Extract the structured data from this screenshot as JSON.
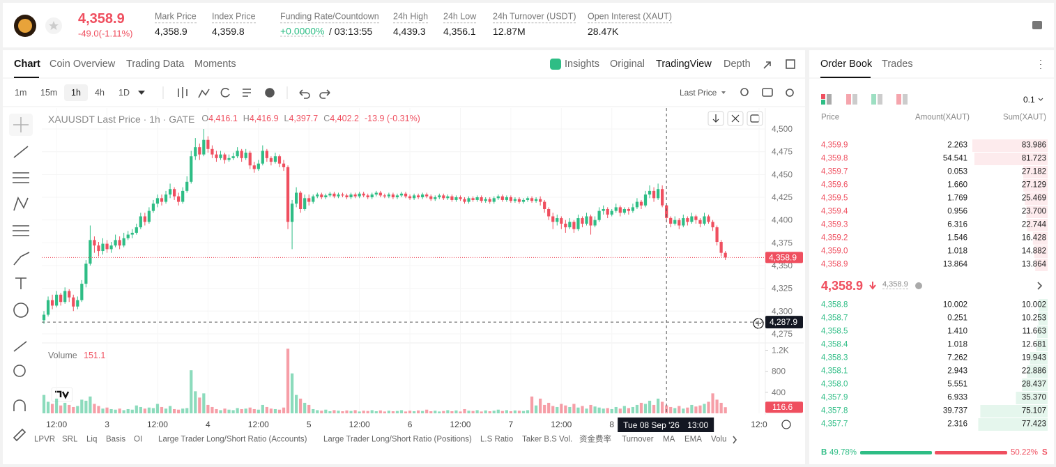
{
  "header": {
    "price": "4,358.9",
    "change": "-49.0(-1.11%)",
    "stats": [
      {
        "label": "Mark Price",
        "value": "4,358.9"
      },
      {
        "label": "Index Price",
        "value": "4,359.8"
      },
      {
        "label": "Funding Rate/Countdown",
        "value": "+0.0000%",
        "extra": "/ 03:13:55"
      },
      {
        "label": "24h High",
        "value": "4,439.3"
      },
      {
        "label": "24h Low",
        "value": "4,356.1"
      },
      {
        "label": "24h Turnover (USDT)",
        "value": "12.87M"
      },
      {
        "label": "Open Interest (XAUT)",
        "value": "28.47K"
      }
    ]
  },
  "tabs": {
    "left": [
      "Chart",
      "Coin Overview",
      "Trading Data",
      "Moments"
    ],
    "right": [
      "Insights",
      "Original",
      "TradingView",
      "Depth"
    ]
  },
  "intervals": [
    "1m",
    "15m",
    "1h",
    "4h",
    "1D"
  ],
  "price_type": "Last Price",
  "chart_data": {
    "type": "candlestick",
    "title": "XAUUSDT Last Price · 1h · GATE",
    "legend": [
      {
        "key": "O",
        "value": "4,416.1"
      },
      {
        "key": "H",
        "value": "4,416.9"
      },
      {
        "key": "L",
        "value": "4,397.7"
      },
      {
        "key": "C",
        "value": "4,402.2"
      }
    ],
    "legend_change": "-13.9 (-0.31%)",
    "up_color": "#2ebd85",
    "down_color": "#ef4f5f",
    "grid": true,
    "xlim": [
      -0.5,
      171.5
    ],
    "ylim": [
      4265,
      4523
    ],
    "yticks": [
      {
        "value": 4275,
        "label": "4,275"
      },
      {
        "value": 4300,
        "label": "4,300"
      },
      {
        "value": 4325,
        "label": "4,325"
      },
      {
        "value": 4350,
        "label": "4,350"
      },
      {
        "value": 4375,
        "label": "4,375"
      },
      {
        "value": 4400,
        "label": "4,400"
      },
      {
        "value": 4425,
        "label": "4,425"
      },
      {
        "value": 4450,
        "label": "4,450"
      },
      {
        "value": 4475,
        "label": "4,475"
      },
      {
        "value": 4500,
        "label": "4,500"
      }
    ],
    "xticks": [
      {
        "value": 3,
        "label": "12:00"
      },
      {
        "value": 15,
        "label": "3"
      },
      {
        "value": 27,
        "label": "12:00"
      },
      {
        "value": 39,
        "label": "4"
      },
      {
        "value": 51,
        "label": "12:00"
      },
      {
        "value": 63,
        "label": "5"
      },
      {
        "value": 75,
        "label": "12:00"
      },
      {
        "value": 87,
        "label": "6"
      },
      {
        "value": 99,
        "label": "12:00"
      },
      {
        "value": 111,
        "label": "7"
      },
      {
        "value": 123,
        "label": "12:00"
      },
      {
        "value": 135,
        "label": "8"
      },
      {
        "value": 170,
        "label": "12:0"
      }
    ],
    "last_price": {
      "value": 4358.9,
      "label": "4,358.9"
    },
    "crosshair_price": {
      "value": 4287.9,
      "label": "4,287.9"
    },
    "crosshair_time": {
      "date": "Tue 08 Sep '26",
      "time": "13:00"
    },
    "candles": [
      [
        4290,
        4300,
        4286,
        4296
      ],
      [
        4296,
        4316,
        4294,
        4312
      ],
      [
        4312,
        4318,
        4302,
        4306
      ],
      [
        4306,
        4322,
        4304,
        4318
      ],
      [
        4318,
        4320,
        4306,
        4310
      ],
      [
        4310,
        4326,
        4308,
        4322
      ],
      [
        4322,
        4324,
        4310,
        4315
      ],
      [
        4315,
        4318,
        4300,
        4305
      ],
      [
        4305,
        4316,
        4302,
        4312
      ],
      [
        4312,
        4334,
        4310,
        4330
      ],
      [
        4330,
        4356,
        4326,
        4352
      ],
      [
        4352,
        4394,
        4350,
        4378
      ],
      [
        4378,
        4382,
        4364,
        4372
      ],
      [
        4372,
        4376,
        4360,
        4366
      ],
      [
        4366,
        4380,
        4362,
        4374
      ],
      [
        4374,
        4378,
        4364,
        4368
      ],
      [
        4368,
        4376,
        4364,
        4372
      ],
      [
        4372,
        4384,
        4370,
        4378
      ],
      [
        4378,
        4382,
        4368,
        4372
      ],
      [
        4372,
        4386,
        4370,
        4380
      ],
      [
        4380,
        4388,
        4378,
        4384
      ],
      [
        4384,
        4390,
        4380,
        4386
      ],
      [
        4386,
        4396,
        4384,
        4392
      ],
      [
        4392,
        4408,
        4390,
        4404
      ],
      [
        4404,
        4408,
        4394,
        4398
      ],
      [
        4398,
        4414,
        4396,
        4410
      ],
      [
        4410,
        4422,
        4408,
        4418
      ],
      [
        4418,
        4428,
        4414,
        4424
      ],
      [
        4424,
        4428,
        4416,
        4420
      ],
      [
        4420,
        4432,
        4418,
        4428
      ],
      [
        4428,
        4440,
        4424,
        4434
      ],
      [
        4434,
        4436,
        4422,
        4426
      ],
      [
        4426,
        4430,
        4416,
        4420
      ],
      [
        4420,
        4436,
        4418,
        4432
      ],
      [
        4432,
        4448,
        4430,
        4442
      ],
      [
        4442,
        4476,
        4440,
        4470
      ],
      [
        4470,
        4490,
        4466,
        4480
      ],
      [
        4480,
        4484,
        4466,
        4472
      ],
      [
        4472,
        4500,
        4470,
        4488
      ],
      [
        4488,
        4492,
        4474,
        4478
      ],
      [
        4478,
        4482,
        4468,
        4472
      ],
      [
        4472,
        4476,
        4464,
        4468
      ],
      [
        4468,
        4476,
        4466,
        4472
      ],
      [
        4472,
        4474,
        4462,
        4466
      ],
      [
        4466,
        4472,
        4464,
        4468
      ],
      [
        4468,
        4474,
        4466,
        4470
      ],
      [
        4470,
        4480,
        4468,
        4476
      ],
      [
        4476,
        4478,
        4464,
        4468
      ],
      [
        4468,
        4478,
        4466,
        4474
      ],
      [
        4474,
        4476,
        4456,
        4460
      ],
      [
        4460,
        4464,
        4452,
        4456
      ],
      [
        4456,
        4466,
        4454,
        4462
      ],
      [
        4462,
        4482,
        4460,
        4476
      ],
      [
        4476,
        4478,
        4464,
        4468
      ],
      [
        4468,
        4470,
        4460,
        4464
      ],
      [
        4464,
        4474,
        4462,
        4470
      ],
      [
        4470,
        4472,
        4458,
        4462
      ],
      [
        4462,
        4466,
        4454,
        4458
      ],
      [
        4458,
        4460,
        4390,
        4398
      ],
      [
        4398,
        4422,
        4368,
        4418
      ],
      [
        4418,
        4436,
        4414,
        4430
      ],
      [
        4430,
        4432,
        4408,
        4412
      ],
      [
        4412,
        4428,
        4410,
        4424
      ],
      [
        4424,
        4428,
        4416,
        4420
      ],
      [
        4420,
        4428,
        4418,
        4426
      ],
      [
        4426,
        4430,
        4424,
        4428
      ],
      [
        4428,
        4430,
        4423,
        4425
      ],
      [
        4425,
        4429,
        4423,
        4427
      ],
      [
        4427,
        4431,
        4425,
        4429
      ],
      [
        4429,
        4431,
        4424,
        4426
      ],
      [
        4426,
        4430,
        4424,
        4428
      ],
      [
        4428,
        4430,
        4425,
        4427
      ],
      [
        4427,
        4429,
        4423,
        4425
      ],
      [
        4425,
        4430,
        4423,
        4428
      ],
      [
        4428,
        4430,
        4424,
        4426
      ],
      [
        4426,
        4431,
        4424,
        4429
      ],
      [
        4429,
        4431,
        4425,
        4427
      ],
      [
        4427,
        4429,
        4423,
        4425
      ],
      [
        4425,
        4430,
        4423,
        4428
      ],
      [
        4428,
        4432,
        4426,
        4430
      ],
      [
        4430,
        4432,
        4425,
        4427
      ],
      [
        4427,
        4429,
        4424,
        4426
      ],
      [
        4426,
        4430,
        4424,
        4428
      ],
      [
        4428,
        4430,
        4423,
        4425
      ],
      [
        4425,
        4429,
        4423,
        4427
      ],
      [
        4427,
        4431,
        4425,
        4429
      ],
      [
        4429,
        4431,
        4424,
        4426
      ],
      [
        4426,
        4428,
        4422,
        4424
      ],
      [
        4424,
        4429,
        4422,
        4427
      ],
      [
        4427,
        4429,
        4423,
        4425
      ],
      [
        4425,
        4430,
        4423,
        4428
      ],
      [
        4428,
        4430,
        4424,
        4426
      ],
      [
        4426,
        4428,
        4421,
        4423
      ],
      [
        4423,
        4427,
        4421,
        4425
      ],
      [
        4425,
        4429,
        4423,
        4427
      ],
      [
        4427,
        4429,
        4422,
        4424
      ],
      [
        4424,
        4428,
        4422,
        4426
      ],
      [
        4426,
        4428,
        4420,
        4422
      ],
      [
        4422,
        4427,
        4420,
        4425
      ],
      [
        4425,
        4427,
        4421,
        4423
      ],
      [
        4423,
        4425,
        4418,
        4420
      ],
      [
        4420,
        4426,
        4418,
        4424
      ],
      [
        4424,
        4426,
        4420,
        4422
      ],
      [
        4422,
        4427,
        4420,
        4425
      ],
      [
        4425,
        4427,
        4419,
        4421
      ],
      [
        4421,
        4425,
        4419,
        4423
      ],
      [
        4423,
        4425,
        4418,
        4420
      ],
      [
        4420,
        4426,
        4418,
        4424
      ],
      [
        4424,
        4428,
        4422,
        4426
      ],
      [
        4426,
        4428,
        4420,
        4422
      ],
      [
        4422,
        4427,
        4420,
        4425
      ],
      [
        4425,
        4427,
        4419,
        4421
      ],
      [
        4421,
        4425,
        4419,
        4423
      ],
      [
        4423,
        4425,
        4418,
        4420
      ],
      [
        4420,
        4424,
        4418,
        4422
      ],
      [
        4422,
        4426,
        4420,
        4424
      ],
      [
        4424,
        4426,
        4419,
        4421
      ],
      [
        4421,
        4425,
        4419,
        4423
      ],
      [
        4423,
        4426,
        4416,
        4420
      ],
      [
        4420,
        4422,
        4408,
        4412
      ],
      [
        4412,
        4414,
        4400,
        4404
      ],
      [
        4404,
        4408,
        4390,
        4398
      ],
      [
        4398,
        4406,
        4394,
        4402
      ],
      [
        4402,
        4404,
        4390,
        4396
      ],
      [
        4396,
        4400,
        4386,
        4392
      ],
      [
        4392,
        4402,
        4390,
        4398
      ],
      [
        4398,
        4400,
        4386,
        4390
      ],
      [
        4390,
        4406,
        4388,
        4402
      ],
      [
        4402,
        4404,
        4392,
        4396
      ],
      [
        4396,
        4408,
        4394,
        4404
      ],
      [
        4404,
        4406,
        4384,
        4394
      ],
      [
        4394,
        4404,
        4392,
        4400
      ],
      [
        4400,
        4414,
        4398,
        4410
      ],
      [
        4410,
        4416,
        4406,
        4412
      ],
      [
        4412,
        4414,
        4402,
        4406
      ],
      [
        4406,
        4412,
        4404,
        4410
      ],
      [
        4410,
        4418,
        4408,
        4414
      ],
      [
        4414,
        4416,
        4404,
        4408
      ],
      [
        4408,
        4414,
        4406,
        4412
      ],
      [
        4412,
        4414,
        4406,
        4410
      ],
      [
        4410,
        4418,
        4408,
        4414
      ],
      [
        4414,
        4424,
        4412,
        4420
      ],
      [
        4420,
        4422,
        4412,
        4416
      ],
      [
        4416,
        4432,
        4414,
        4428
      ],
      [
        4428,
        4438,
        4424,
        4432
      ],
      [
        4432,
        4436,
        4420,
        4424
      ],
      [
        4424,
        4440,
        4422,
        4434
      ],
      [
        4434,
        4438,
        4414,
        4416.1
      ],
      [
        4416.1,
        4416.9,
        4397.7,
        4402.2
      ],
      [
        4402.2,
        4404,
        4392,
        4396
      ],
      [
        4396,
        4404,
        4394,
        4400
      ],
      [
        4400,
        4402,
        4390,
        4394
      ],
      [
        4394,
        4406,
        4392,
        4402
      ],
      [
        4402,
        4404,
        4394,
        4398
      ],
      [
        4398,
        4408,
        4396,
        4404
      ],
      [
        4404,
        4406,
        4396,
        4400
      ],
      [
        4400,
        4402,
        4392,
        4396
      ],
      [
        4396,
        4408,
        4394,
        4404
      ],
      [
        4404,
        4406,
        4396,
        4398
      ],
      [
        4398,
        4400,
        4388,
        4392
      ],
      [
        4392,
        4394,
        4372,
        4376
      ],
      [
        4376,
        4378,
        4360,
        4364
      ],
      [
        4364,
        4366,
        4356.1,
        4358.9
      ]
    ],
    "volume": {
      "title": "Volume",
      "ylim": [
        0,
        1300
      ],
      "yticks": [
        {
          "value": 1200,
          "label": "1.2K"
        },
        800,
        400
      ],
      "values": [
        350,
        220,
        180,
        280,
        150,
        200,
        160,
        120,
        140,
        260,
        240,
        320,
        180,
        140,
        90,
        110,
        80,
        70,
        90,
        60,
        80,
        70,
        150,
        120,
        90,
        110,
        100,
        180,
        120,
        90,
        140,
        80,
        70,
        90,
        100,
        820,
        420,
        300,
        380,
        160,
        120,
        80,
        60,
        90,
        70,
        60,
        100,
        80,
        90,
        110,
        80,
        70,
        160,
        120,
        90,
        80,
        70,
        110,
        1230,
        760,
        350,
        280,
        200,
        160,
        80,
        60,
        50,
        70,
        40,
        60,
        50,
        40,
        55,
        45,
        60,
        35,
        50,
        45,
        60,
        40,
        55,
        35,
        50,
        40,
        45,
        60,
        35,
        50,
        40,
        55,
        45,
        70,
        40,
        50,
        35,
        45,
        60,
        40,
        55,
        35,
        80,
        50,
        45,
        60,
        35,
        55,
        40,
        50,
        70,
        45,
        60,
        40,
        55,
        50,
        45,
        60,
        320,
        150,
        280,
        160,
        200,
        140,
        120,
        180,
        150,
        120,
        180,
        110,
        140,
        90,
        160,
        130,
        110,
        90,
        100,
        80,
        120,
        90,
        140,
        100,
        120,
        160,
        200,
        180,
        240,
        160,
        280,
        220,
        151.1,
        120,
        100,
        140,
        90,
        110,
        160,
        130,
        150,
        180,
        220,
        380,
        260,
        200,
        116.6
      ]
    }
  },
  "indicators": [
    "LPVR",
    "SRL",
    "Liq",
    "Basis",
    "OI",
    "Large Trader Long/Short Ratio (Accounts)",
    "Large Trader Long/Short Ratio (Positions)",
    "L.S Ratio",
    "Taker B.S Vol.",
    "资金费率",
    "Turnover",
    "MA",
    "EMA",
    "Volu"
  ],
  "order_book": {
    "tabs": [
      "Order Book",
      "Trades"
    ],
    "precision": "0.1",
    "columns": [
      "Price",
      "Amount(XAUT)",
      "Sum(XAUT)"
    ],
    "asks": [
      [
        "4,359.9",
        "2.263",
        "83.986"
      ],
      [
        "4,359.8",
        "54.541",
        "81.723"
      ],
      [
        "4,359.7",
        "0.053",
        "27.182"
      ],
      [
        "4,359.6",
        "1.660",
        "27.129"
      ],
      [
        "4,359.5",
        "1.769",
        "25.469"
      ],
      [
        "4,359.4",
        "0.956",
        "23.700"
      ],
      [
        "4,359.3",
        "6.316",
        "22.744"
      ],
      [
        "4,359.2",
        "1.546",
        "16.428"
      ],
      [
        "4,359.0",
        "1.018",
        "14.882"
      ],
      [
        "4,358.9",
        "13.864",
        "13.864"
      ]
    ],
    "mid": {
      "price": "4,358.9",
      "mark": "4,358.9"
    },
    "bids": [
      [
        "4,358.8",
        "10.002",
        "10.002"
      ],
      [
        "4,358.7",
        "0.251",
        "10.253"
      ],
      [
        "4,358.5",
        "1.410",
        "11.663"
      ],
      [
        "4,358.4",
        "1.018",
        "12.681"
      ],
      [
        "4,358.3",
        "7.262",
        "19.943"
      ],
      [
        "4,358.1",
        "2.943",
        "22.886"
      ],
      [
        "4,358.0",
        "5.551",
        "28.437"
      ],
      [
        "4,357.9",
        "6.933",
        "35.370"
      ],
      [
        "4,357.8",
        "39.737",
        "75.107"
      ],
      [
        "4,357.7",
        "2.316",
        "77.423"
      ]
    ],
    "buy": {
      "side": "B",
      "percent": 49.78,
      "label": "49.78%"
    },
    "sell": {
      "side": "S",
      "percent": 50.22,
      "label": "50.22%"
    }
  }
}
